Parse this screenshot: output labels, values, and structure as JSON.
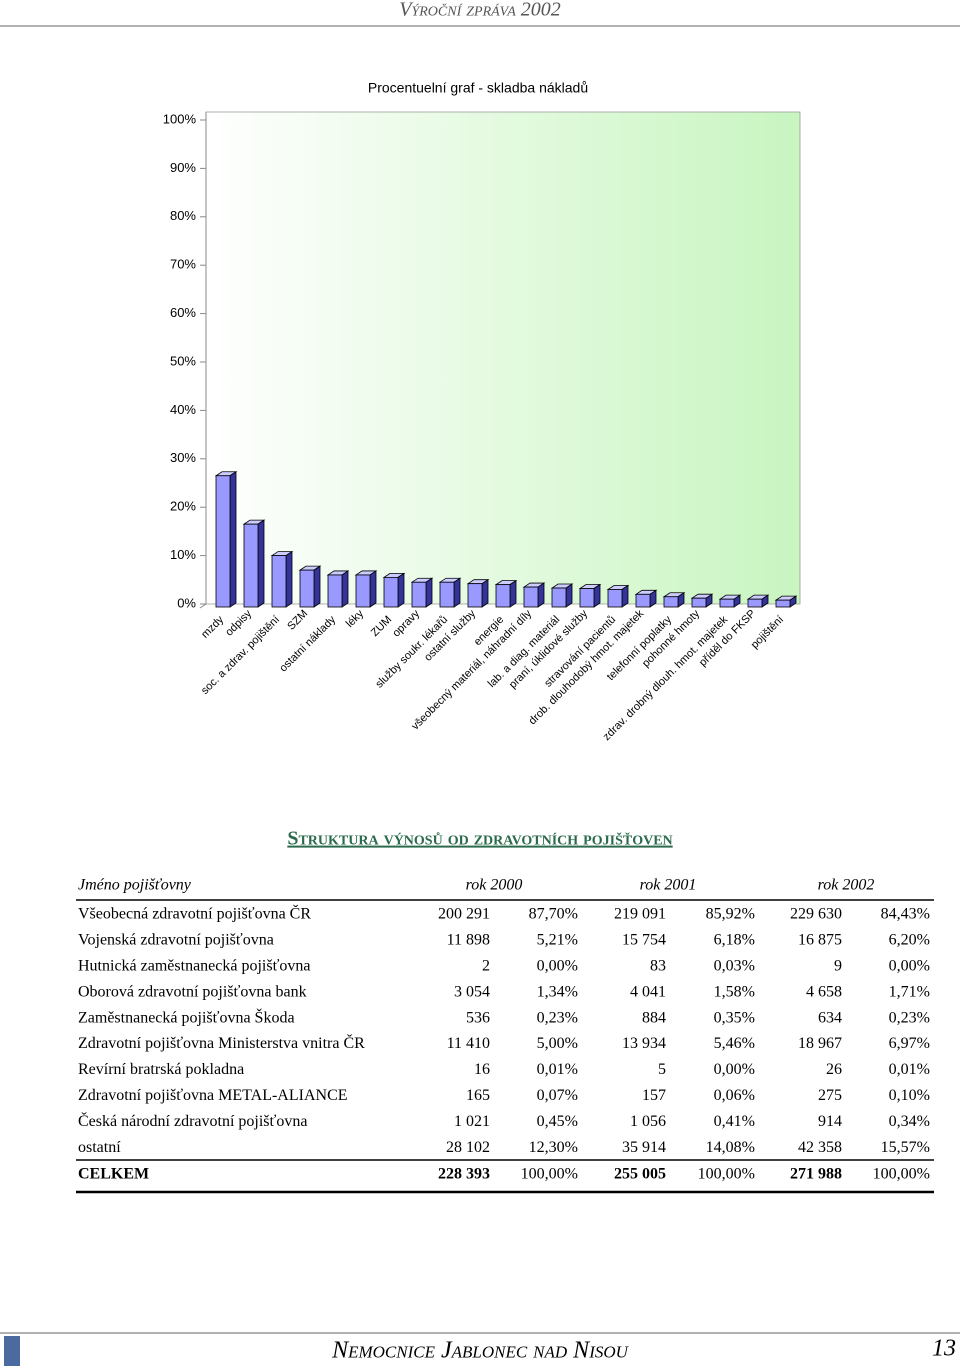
{
  "header": {
    "title": "Výroční zpráva 2002"
  },
  "chart_data": {
    "type": "bar3d",
    "title": "Procentuelní graf - skladba nákladů",
    "categories": [
      "mzdy",
      "odpisy",
      "soc. a zdrav. pojištění",
      "SZM",
      "ostatní náklady",
      "léky",
      "ZUM",
      "opravy",
      "služby soukr. lékařů",
      "ostatní služby",
      "energie",
      "všeobecný materiál, náhradní díly",
      "lab. a diag. materiál",
      "praní, úklidové služby",
      "stravování pacientů",
      "drob. dlouhodobý hmot. majetek",
      "telefonní poplatky",
      "pohonné hmoty",
      "zdrav. drobný dlouh. hmot. majetek",
      "příděl do FKSP",
      "pojištění"
    ],
    "values": [
      26.5,
      16.5,
      10,
      7,
      6,
      6,
      5.5,
      4.5,
      4.5,
      4.2,
      4,
      3.5,
      3.3,
      3.2,
      3,
      2,
      1.5,
      1.2,
      1,
      1,
      0.8
    ],
    "color": "#9999ff",
    "ylim": [
      0,
      100
    ],
    "yticks": [
      {
        "value": 0,
        "label": "0%"
      },
      {
        "value": 10,
        "label": "10%"
      },
      {
        "value": 20,
        "label": "20%"
      },
      {
        "value": 30,
        "label": "30%"
      },
      {
        "value": 40,
        "label": "40%"
      },
      {
        "value": 50,
        "label": "50%"
      },
      {
        "value": 60,
        "label": "60%"
      },
      {
        "value": 70,
        "label": "70%"
      },
      {
        "value": 80,
        "label": "80%"
      },
      {
        "value": 90,
        "label": "90%"
      },
      {
        "value": 100,
        "label": "100%"
      }
    ]
  },
  "section": {
    "title": "Struktura výnosů od zdravotních pojišťoven"
  },
  "table": {
    "header": [
      "Jméno pojišťovny",
      "rok 2000",
      "rok 2001",
      "rok 2002"
    ],
    "rows": [
      [
        "Všeobecná zdravotní pojišťovna ČR",
        "200 291",
        "87,70%",
        "219 091",
        "85,92%",
        "229 630",
        "84,43%"
      ],
      [
        "Vojenská zdravotní pojišťovna",
        "11 898",
        "5,21%",
        "15 754",
        "6,18%",
        "16 875",
        "6,20%"
      ],
      [
        "Hutnická zaměstnanecká pojišťovna",
        "2",
        "0,00%",
        "83",
        "0,03%",
        "9",
        "0,00%"
      ],
      [
        "Oborová zdravotní pojišťovna bank",
        "3 054",
        "1,34%",
        "4 041",
        "1,58%",
        "4 658",
        "1,71%"
      ],
      [
        "Zaměstnanecká pojišťovna Škoda",
        "536",
        "0,23%",
        "884",
        "0,35%",
        "634",
        "0,23%"
      ],
      [
        "Zdravotní pojišťovna Ministerstva vnitra ČR",
        "11 410",
        "5,00%",
        "13 934",
        "5,46%",
        "18 967",
        "6,97%"
      ],
      [
        "Revírní bratrská pokladna",
        "16",
        "0,01%",
        "5",
        "0,00%",
        "26",
        "0,01%"
      ],
      [
        "Zdravotní pojišťovna METAL-ALIANCE",
        "165",
        "0,07%",
        "157",
        "0,06%",
        "275",
        "0,10%"
      ],
      [
        "Česká národní zdravotní pojišťovna",
        "1 021",
        "0,45%",
        "1 056",
        "0,41%",
        "914",
        "0,34%"
      ],
      [
        "ostatní",
        "28 102",
        "12,30%",
        "35 914",
        "14,08%",
        "42 358",
        "15,57%"
      ]
    ],
    "total": [
      "CELKEM",
      "228 393",
      "100,00%",
      "255 005",
      "100,00%",
      "271 988",
      "100,00%"
    ]
  },
  "footer": {
    "title": "Nemocnice Jablonec nad Nisou",
    "page": "13"
  }
}
